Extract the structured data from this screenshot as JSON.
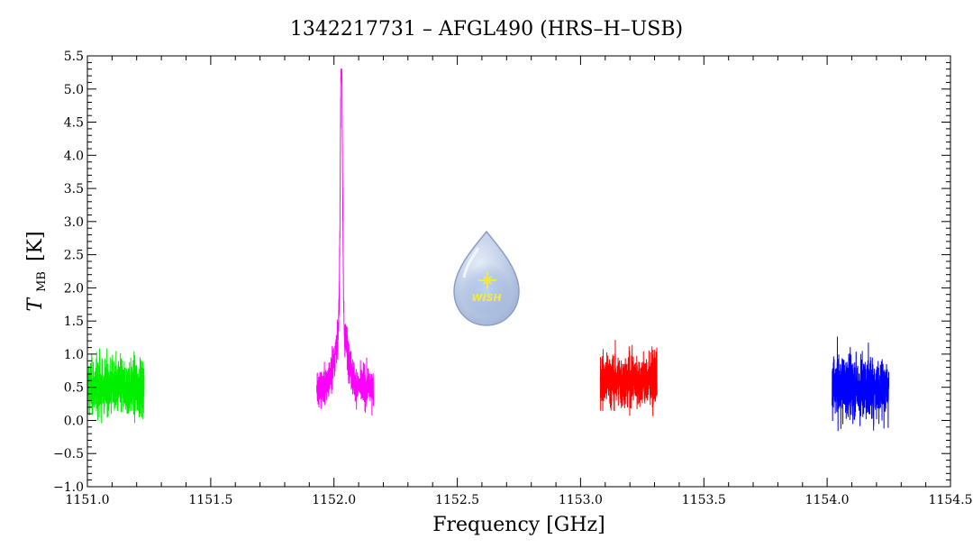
{
  "chart_data": {
    "type": "line",
    "title": "1342217731 – AFGL490 (HRS–H–USB)",
    "xlabel": "Frequency [GHz]",
    "ylabel_symbol": "T",
    "ylabel_subscript": "MB",
    "ylabel_unit": "[K]",
    "xlim": [
      1151.0,
      1154.5
    ],
    "ylim": [
      -1.0,
      5.5
    ],
    "xticks": [
      "1151.0",
      "1151.5",
      "1152.0",
      "1152.5",
      "1153.0",
      "1153.5",
      "1154.0",
      "1154.5"
    ],
    "yticks": [
      "−1.0",
      "−0.5",
      "0.0",
      "0.5",
      "1.0",
      "1.5",
      "2.0",
      "2.5",
      "3.0",
      "3.5",
      "4.0",
      "4.5",
      "5.0",
      "5.5"
    ],
    "grid": false,
    "legend": "none",
    "series": [
      {
        "color": "#00ee00",
        "x_range": [
          1151.0,
          1151.23
        ],
        "baseline": 0.5,
        "noise_range": [
          -0.35,
          1.75
        ],
        "peak": null
      },
      {
        "color": "#ff00ff",
        "x_range": [
          1151.93,
          1152.16
        ],
        "baseline": 0.5,
        "noise_range": [
          -0.1,
          1.3
        ],
        "peak": {
          "center": 1152.03,
          "height": 5.3
        }
      },
      {
        "color": "#ff0000",
        "x_range": [
          1153.08,
          1153.31
        ],
        "baseline": 0.6,
        "noise_range": [
          -0.35,
          1.65
        ],
        "peak": null
      },
      {
        "color": "#0000ff",
        "x_range": [
          1154.02,
          1154.25
        ],
        "baseline": 0.5,
        "noise_range": [
          -0.5,
          1.85
        ],
        "peak": null
      }
    ]
  },
  "logo": {
    "text": "WISH",
    "colors": {
      "drop_light": "#e4ecf8",
      "drop_dark": "#9aaed4",
      "star": "#f4e64a",
      "text": "#f4e64a"
    }
  }
}
